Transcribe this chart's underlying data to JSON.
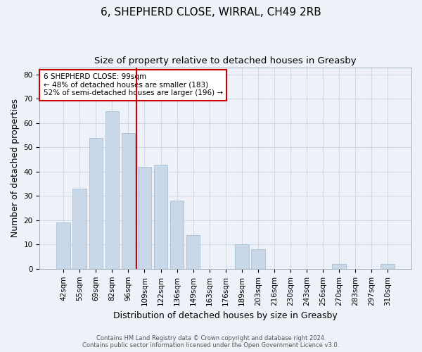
{
  "title_line1": "6, SHEPHERD CLOSE, WIRRAL, CH49 2RB",
  "title_line2": "Size of property relative to detached houses in Greasby",
  "xlabel": "Distribution of detached houses by size in Greasby",
  "ylabel": "Number of detached properties",
  "categories": [
    "42sqm",
    "55sqm",
    "69sqm",
    "82sqm",
    "96sqm",
    "109sqm",
    "122sqm",
    "136sqm",
    "149sqm",
    "163sqm",
    "176sqm",
    "189sqm",
    "203sqm",
    "216sqm",
    "230sqm",
    "243sqm",
    "256sqm",
    "270sqm",
    "283sqm",
    "297sqm",
    "310sqm"
  ],
  "values": [
    19,
    33,
    54,
    65,
    56,
    42,
    43,
    28,
    14,
    0,
    0,
    10,
    8,
    0,
    0,
    0,
    0,
    2,
    0,
    0,
    2
  ],
  "bar_color": "#c8d8e8",
  "bar_edgecolor": "#a0b8d0",
  "grid_color": "#d0d8e8",
  "background_color": "#eef2f8",
  "vline_x": 4.5,
  "vline_color": "#cc0000",
  "annotation_text": "6 SHEPHERD CLOSE: 99sqm\n← 48% of detached houses are smaller (183)\n52% of semi-detached houses are larger (196) →",
  "annotation_box_edgecolor": "#cc0000",
  "annotation_box_facecolor": "#ffffff",
  "ylim": [
    0,
    83
  ],
  "yticks": [
    0,
    10,
    20,
    30,
    40,
    50,
    60,
    70,
    80
  ],
  "footer_text": "Contains HM Land Registry data © Crown copyright and database right 2024.\nContains public sector information licensed under the Open Government Licence v3.0.",
  "title_fontsize": 11,
  "subtitle_fontsize": 9.5,
  "axis_label_fontsize": 9,
  "tick_fontsize": 7.5,
  "annotation_fontsize": 7.5
}
